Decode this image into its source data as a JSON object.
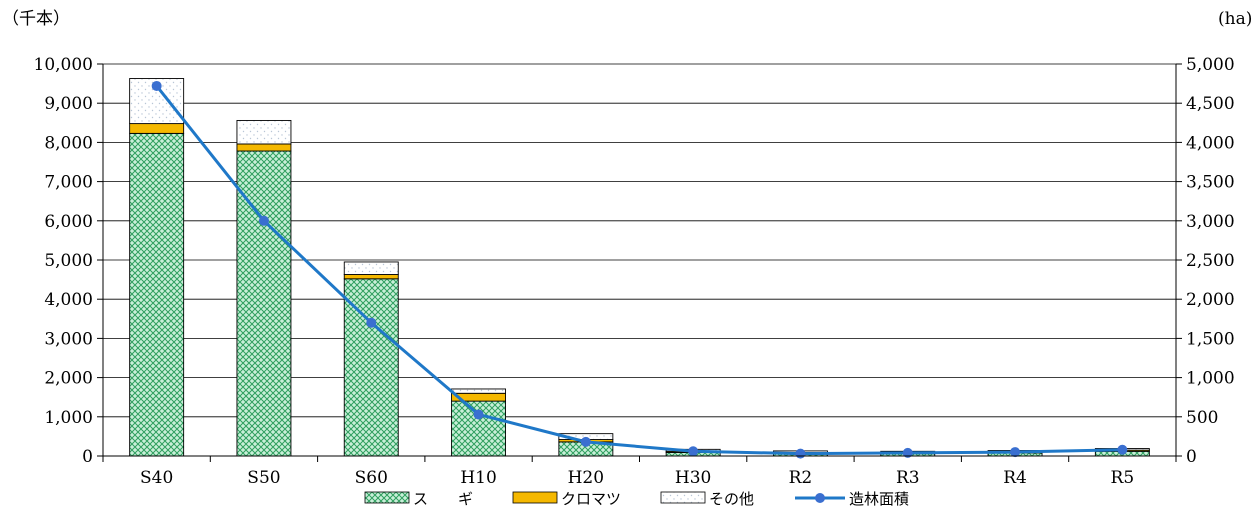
{
  "chart_data": {
    "type": "bar",
    "stacked": true,
    "categories": [
      "S40",
      "S50",
      "S60",
      "H10",
      "H20",
      "H30",
      "R2",
      "R3",
      "R4",
      "R5"
    ],
    "series": [
      {
        "name": "スギ",
        "legend_label": "ス　　ギ",
        "kind": "bar",
        "axis": "left",
        "color": "#3cb371",
        "pattern": "crosshatch-green",
        "values": [
          8230,
          7780,
          4520,
          1400,
          360,
          90,
          70,
          60,
          80,
          120
        ]
      },
      {
        "name": "クロマツ",
        "legend_label": "クロマツ",
        "kind": "bar",
        "axis": "left",
        "color": "#f5b800",
        "pattern": "solid-orange",
        "values": [
          250,
          180,
          110,
          200,
          60,
          30,
          20,
          20,
          20,
          30
        ]
      },
      {
        "name": "その他",
        "legend_label": "その他",
        "kind": "bar",
        "axis": "left",
        "color": "#ffffff",
        "pattern": "dots-white",
        "values": [
          1150,
          600,
          320,
          110,
          150,
          50,
          40,
          40,
          40,
          40
        ]
      },
      {
        "name": "造林面積",
        "legend_label": "造林面積",
        "kind": "line",
        "axis": "right",
        "color": "#1f78c8",
        "values": [
          4720,
          3000,
          1700,
          530,
          180,
          60,
          30,
          40,
          50,
          80
        ]
      }
    ],
    "y_left": {
      "unit": "（千本）",
      "min": 0,
      "max": 10000,
      "step": 1000,
      "tick_labels": [
        "0",
        "1,000",
        "2,000",
        "3,000",
        "4,000",
        "5,000",
        "6,000",
        "7,000",
        "8,000",
        "9,000",
        "10,000"
      ]
    },
    "y_right": {
      "unit": "(ha)",
      "min": 0,
      "max": 5000,
      "step": 500,
      "tick_labels": [
        "0",
        "500",
        "1,000",
        "1,500",
        "2,000",
        "2,500",
        "3,000",
        "3,500",
        "4,000",
        "4,500",
        "5,000"
      ]
    },
    "grid": true,
    "legend_position": "bottom"
  }
}
